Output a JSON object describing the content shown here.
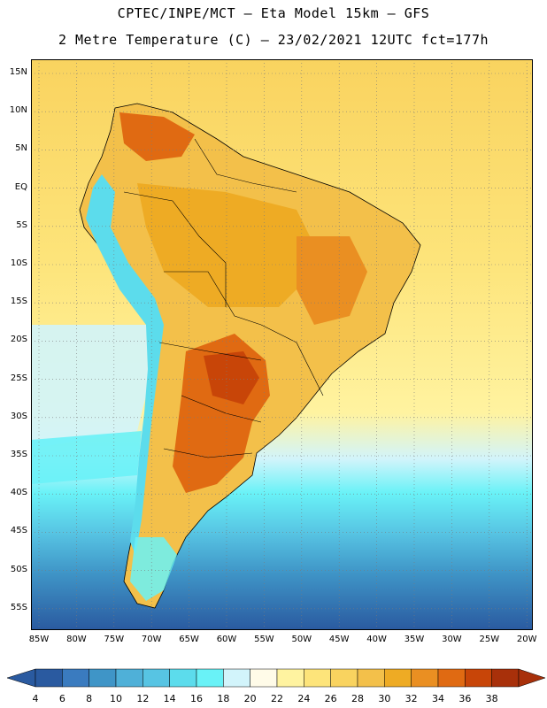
{
  "header": {
    "title_line1": "CPTEC/INPE/MCT –  Eta Model 15km – GFS",
    "title_line2": "2 Metre Temperature (C) – 23/02/2021 12UTC fct=177h"
  },
  "axes": {
    "latitudes": [
      "15N",
      "10N",
      "5N",
      "EQ",
      "5S",
      "10S",
      "15S",
      "20S",
      "25S",
      "30S",
      "35S",
      "40S",
      "45S",
      "50S",
      "55S"
    ],
    "longitudes": [
      "85W",
      "80W",
      "75W",
      "70W",
      "65W",
      "60W",
      "55W",
      "50W",
      "45W",
      "40W",
      "35W",
      "30W",
      "25W",
      "20W"
    ]
  },
  "legend": {
    "labels": [
      "4",
      "6",
      "8",
      "10",
      "12",
      "14",
      "16",
      "18",
      "20",
      "22",
      "24",
      "26",
      "28",
      "30",
      "32",
      "34",
      "36",
      "38"
    ],
    "colors": [
      "#2a5aa0",
      "#3a7bbf",
      "#3f95c7",
      "#4fb0d8",
      "#57c4e3",
      "#5cdcec",
      "#69f2f7",
      "#d2f4fb",
      "#fffbe8",
      "#fff3a0",
      "#fde47a",
      "#f9d35f",
      "#f3c04a",
      "#eeab24",
      "#ea8f22",
      "#e06a12",
      "#c84508",
      "#a8300a"
    ]
  },
  "colors": {
    "ocean_warm": "#fde47a",
    "ocean_mid": "#fff3a0",
    "land_hot": "#e06a12",
    "land_warm": "#f3c04a",
    "andes": "#5cdcec",
    "south_cold": "#3f95c7",
    "frame": "#000000"
  }
}
